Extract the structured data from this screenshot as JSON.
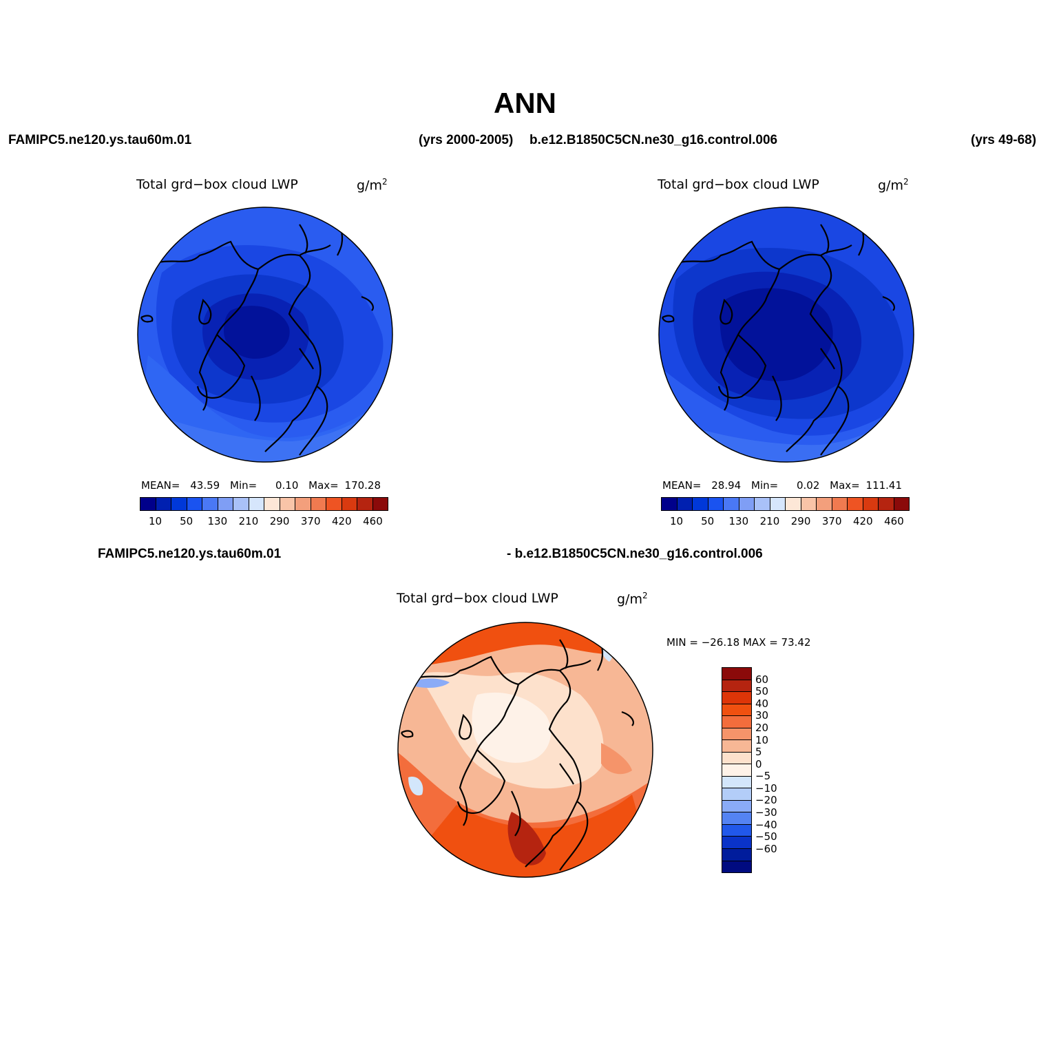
{
  "figure": {
    "title": "ANN",
    "top_left_case": "FAMIPC5.ne120.ys.tau60m.01",
    "top_left_years": "(yrs 2000-2005)",
    "top_right_case": "b.e12.B1850C5CN.ne30_g16.control.006",
    "top_right_years": "(yrs 49-68)",
    "diff_case_a": "FAMIPC5.ne120.ys.tau60m.01",
    "diff_case_b": "- b.e12.B1850C5CN.ne30_g16.control.006"
  },
  "panels": {
    "left": {
      "variable": "Total grd−box cloud LWP",
      "units_base": "g/m",
      "units_exp": "2",
      "mean_label": "MEAN=",
      "mean_value": "43.59",
      "min_label": "Min=",
      "min_value": "0.10",
      "max_label": "Max=",
      "max_value": "170.28"
    },
    "right": {
      "variable": "Total grd−box cloud LWP",
      "units_base": "g/m",
      "units_exp": "2",
      "mean_label": "MEAN=",
      "mean_value": "28.94",
      "min_label": "Min=",
      "min_value": "0.02",
      "max_label": "Max=",
      "max_value": "111.41"
    },
    "diff": {
      "variable": "Total grd−box cloud LWP",
      "units_base": "g/m",
      "units_exp": "2",
      "minmax_text": "MIN = −26.18 MAX =   73.42"
    }
  },
  "abs_colorbar": {
    "colors": [
      "#00008b",
      "#0020b0",
      "#0038d8",
      "#1a53f0",
      "#4a78f5",
      "#7f9ef5",
      "#a9c1f8",
      "#d6e6fc",
      "#fde7d7",
      "#f9c4a8",
      "#f39f7c",
      "#f07a50",
      "#ee5423",
      "#d93a10",
      "#b52410",
      "#8b0a0a"
    ],
    "tick_labels": [
      "10",
      "50",
      "130",
      "210",
      "290",
      "370",
      "420",
      "460"
    ]
  },
  "diff_colorbar": {
    "colors": [
      "#8b0a0a",
      "#b52410",
      "#de3508",
      "#f05010",
      "#f36d3c",
      "#f5946a",
      "#f7b795",
      "#fde1cc",
      "#fef2e8",
      "#d3e6fb",
      "#b3cdf8",
      "#8aabf7",
      "#5483f3",
      "#2158ea",
      "#0a33c8",
      "#001c9c",
      "#000b80"
    ],
    "tick_labels": [
      "60",
      "50",
      "40",
      "30",
      "20",
      "10",
      "5",
      "0",
      "−5",
      "−10",
      "−20",
      "−30",
      "−40",
      "−50",
      "−60"
    ]
  },
  "chart_data": {
    "type": "heatmap",
    "projection": "north polar stereographic",
    "panels": [
      {
        "name": "FAMIPC5.ne120.ys.tau60m.01 (yrs 2000-2005)",
        "variable": "Total grd-box cloud LWP",
        "units": "g/m2",
        "mean": 43.59,
        "min": 0.1,
        "max": 170.28
      },
      {
        "name": "b.e12.B1850C5CN.ne30_g16.control.006 (yrs 49-68)",
        "variable": "Total grd-box cloud LWP",
        "units": "g/m2",
        "mean": 28.94,
        "min": 0.02,
        "max": 111.41
      },
      {
        "name": "FAMIPC5.ne120.ys.tau60m.01 - b.e12.B1850C5CN.ne30_g16.control.006",
        "variable": "Total grd-box cloud LWP",
        "units": "g/m2",
        "min": -26.18,
        "max": 73.42
      }
    ],
    "abs_levels": [
      10,
      50,
      130,
      210,
      290,
      370,
      420,
      460
    ],
    "diff_levels": [
      -60,
      -50,
      -40,
      -30,
      -20,
      -10,
      -5,
      0,
      5,
      10,
      20,
      30,
      40,
      50,
      60
    ]
  }
}
